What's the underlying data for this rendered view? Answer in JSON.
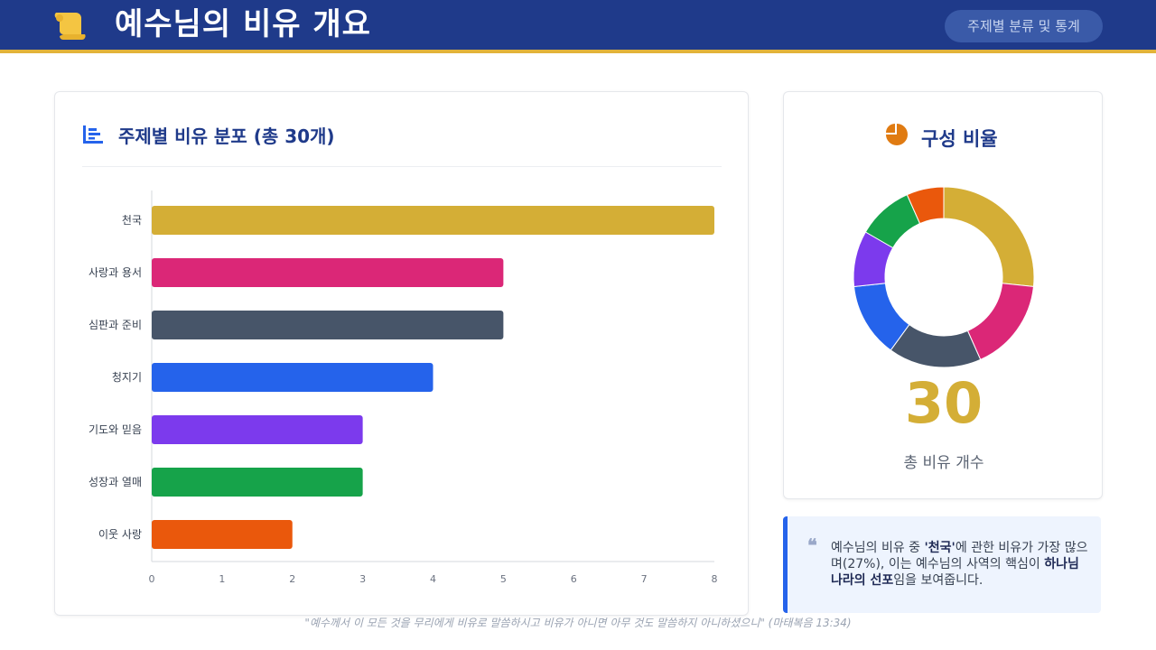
{
  "header": {
    "title": "예수님의 비유 개요",
    "badge": "주제별 분류 및 통계"
  },
  "bar_card": {
    "title": "주제별 비유 분포 (총 30개)"
  },
  "pie_card": {
    "title": "구성 비율",
    "total": "30",
    "total_label": "총 비유 개수"
  },
  "insight": {
    "mark": "❝",
    "pre": "예수님의 비유 중 ",
    "highlight1": "'천국'",
    "mid": "에 관한 비유가 가장 많으며(27%), 이는 예수님의 사역의 핵심이 ",
    "highlight2": "하나님 나라의 선포",
    "post": "임을 보여줍니다."
  },
  "footer": {
    "quote": "\"예수께서 이 모든 것을 무리에게 비유로 말씀하시고 비유가 아니면 아무 것도 말씀하지 아니하셨으니\" (마태복음 13:34)"
  },
  "chart_data": [
    {
      "type": "bar",
      "orientation": "horizontal",
      "title": "주제별 비유 분포 (총 30개)",
      "categories": [
        "천국",
        "사랑과 용서",
        "심판과 준비",
        "청지기",
        "기도와 믿음",
        "성장과 열매",
        "이웃 사랑"
      ],
      "values": [
        8,
        5,
        5,
        4,
        3,
        3,
        2
      ],
      "colors": [
        "#d4ae36",
        "#db2777",
        "#475569",
        "#2563eb",
        "#7c3aed",
        "#16a34a",
        "#ea580c"
      ],
      "xlim": [
        0,
        8
      ],
      "xticks": [
        0,
        1,
        2,
        3,
        4,
        5,
        6,
        7,
        8
      ],
      "xlabel": "",
      "ylabel": ""
    },
    {
      "type": "pie",
      "style": "donut",
      "title": "구성 비율",
      "categories": [
        "천국",
        "사랑과 용서",
        "심판과 준비",
        "청지기",
        "기도와 믿음",
        "성장과 열매",
        "이웃 사랑"
      ],
      "values": [
        8,
        5,
        5,
        4,
        3,
        3,
        2
      ],
      "colors": [
        "#d4ae36",
        "#db2777",
        "#475569",
        "#2563eb",
        "#7c3aed",
        "#16a34a",
        "#ea580c"
      ]
    }
  ]
}
